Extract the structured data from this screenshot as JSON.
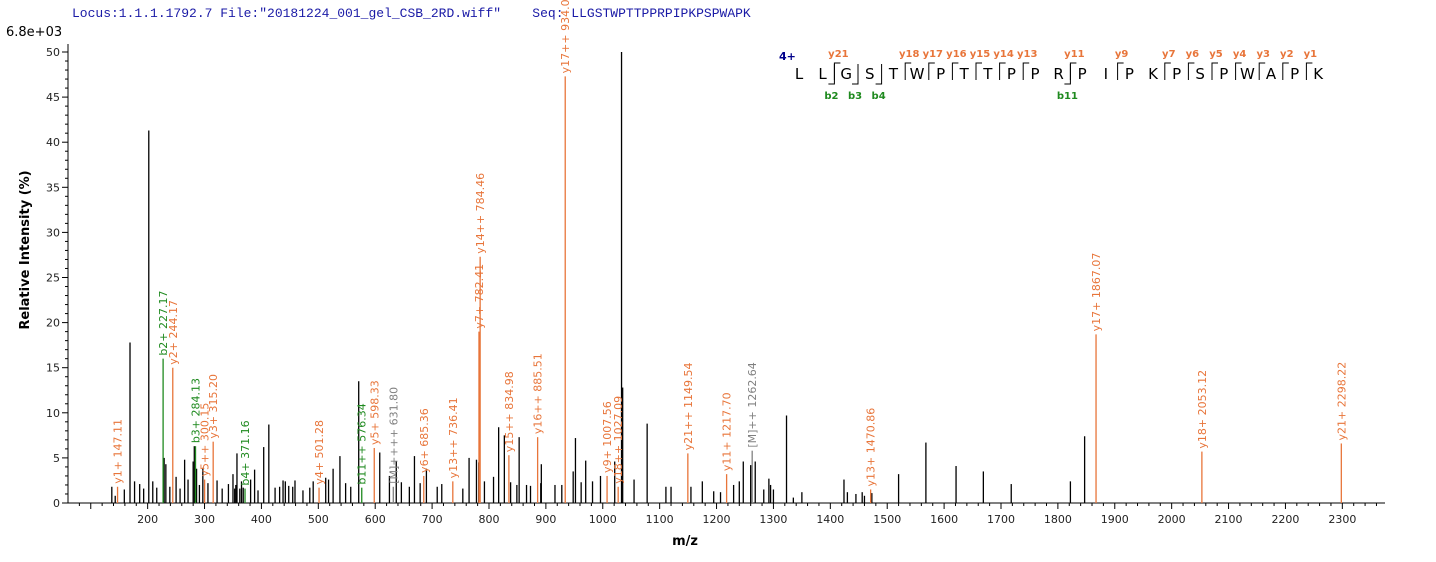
{
  "header": {
    "locus": "Locus:1.1.1.1792.7 File:\"20181224_001_gel_CSB_2RD.wiff\"",
    "seq": "Seq: LLGSTWPTTPPRPIPKPSPWAPK"
  },
  "scale_label": "6.8e+03",
  "colors": {
    "y_ion": "#e8753a",
    "b_ion": "#1f8a1f",
    "precursor": "#808080",
    "unassigned": "#000000",
    "header": "#1a1aa6",
    "charge": "#00008b"
  },
  "chart_data": {
    "type": "bar",
    "xlabel": "m/z",
    "ylabel": "Relative   Intensity (%)",
    "xlim": [
      60,
      2375
    ],
    "ylim": [
      0,
      50
    ],
    "x_ticks": [
      200,
      300,
      400,
      500,
      600,
      700,
      800,
      900,
      1000,
      1100,
      1200,
      1300,
      1400,
      1500,
      1600,
      1700,
      1800,
      1900,
      2000,
      2100,
      2200,
      2300
    ],
    "y_ticks": [
      0,
      5,
      10,
      15,
      20,
      25,
      30,
      35,
      40,
      45,
      50
    ],
    "unlabeled_peaks": [
      [
        137,
        1.8
      ],
      [
        143,
        0.8
      ],
      [
        159,
        1.5
      ],
      [
        169,
        17.8
      ],
      [
        177,
        2.4
      ],
      [
        186,
        2.1
      ],
      [
        193,
        1.6
      ],
      [
        202,
        41.3
      ],
      [
        209,
        2.4
      ],
      [
        216,
        1.7
      ],
      [
        229,
        5.0
      ],
      [
        232,
        4.3
      ],
      [
        239,
        1.8
      ],
      [
        250,
        2.9
      ],
      [
        257,
        1.6
      ],
      [
        265,
        4.8
      ],
      [
        271,
        2.6
      ],
      [
        280,
        4.6
      ],
      [
        282,
        6.3
      ],
      [
        286,
        3.8
      ],
      [
        291,
        2.0
      ],
      [
        297,
        3.9
      ],
      [
        306,
        2.2
      ],
      [
        322,
        2.5
      ],
      [
        331,
        1.6
      ],
      [
        342,
        2.1
      ],
      [
        350,
        3.2
      ],
      [
        353,
        1.6
      ],
      [
        355,
        2.0
      ],
      [
        357,
        5.5
      ],
      [
        362,
        1.6
      ],
      [
        365,
        2.4
      ],
      [
        368,
        1.7
      ],
      [
        381,
        2.6
      ],
      [
        388,
        3.7
      ],
      [
        394,
        1.4
      ],
      [
        404,
        6.2
      ],
      [
        413,
        8.7
      ],
      [
        424,
        1.7
      ],
      [
        432,
        1.8
      ],
      [
        438,
        2.5
      ],
      [
        442,
        2.4
      ],
      [
        448,
        1.9
      ],
      [
        455,
        1.8
      ],
      [
        459,
        2.5
      ],
      [
        473,
        1.4
      ],
      [
        485,
        1.7
      ],
      [
        491,
        2.4
      ],
      [
        513,
        2.8
      ],
      [
        518,
        2.6
      ],
      [
        526,
        3.8
      ],
      [
        538,
        5.2
      ],
      [
        548,
        2.2
      ],
      [
        557,
        1.8
      ],
      [
        571,
        13.5
      ],
      [
        608,
        5.6
      ],
      [
        625,
        3.0
      ],
      [
        637,
        4.6
      ],
      [
        646,
        2.3
      ],
      [
        660,
        1.8
      ],
      [
        669,
        5.2
      ],
      [
        679,
        2.2
      ],
      [
        690,
        3.8
      ],
      [
        709,
        1.8
      ],
      [
        717,
        2.1
      ],
      [
        754,
        1.6
      ],
      [
        765,
        5.0
      ],
      [
        778,
        4.8
      ],
      [
        782,
        4.5
      ],
      [
        792,
        2.4
      ],
      [
        808,
        2.9
      ],
      [
        817,
        8.4
      ],
      [
        827,
        7.5
      ],
      [
        838,
        2.3
      ],
      [
        849,
        2.0
      ],
      [
        853,
        7.3
      ],
      [
        866,
        2.0
      ],
      [
        873,
        1.9
      ],
      [
        891,
        2.2
      ],
      [
        892,
        4.3
      ],
      [
        916,
        2.0
      ],
      [
        928,
        2.0
      ],
      [
        948,
        3.5
      ],
      [
        952,
        7.2
      ],
      [
        962,
        2.3
      ],
      [
        970,
        4.7
      ],
      [
        982,
        2.4
      ],
      [
        996,
        3.0
      ],
      [
        1021,
        4.6
      ],
      [
        1033,
        50.0
      ],
      [
        1035,
        12.8
      ],
      [
        1055,
        2.6
      ],
      [
        1078,
        8.8
      ],
      [
        1111,
        1.8
      ],
      [
        1120,
        1.8
      ],
      [
        1155,
        1.8
      ],
      [
        1175,
        2.4
      ],
      [
        1195,
        1.3
      ],
      [
        1207,
        1.2
      ],
      [
        1230,
        2.0
      ],
      [
        1240,
        2.4
      ],
      [
        1247,
        4.6
      ],
      [
        1260,
        4.2
      ],
      [
        1268,
        4.6
      ],
      [
        1283,
        1.5
      ],
      [
        1292,
        2.7
      ],
      [
        1295,
        2.0
      ],
      [
        1300,
        1.5
      ],
      [
        1323,
        9.7
      ],
      [
        1335,
        0.6
      ],
      [
        1350,
        1.2
      ],
      [
        1424,
        2.6
      ],
      [
        1430,
        1.2
      ],
      [
        1445,
        1.0
      ],
      [
        1456,
        1.2
      ],
      [
        1460,
        0.8
      ],
      [
        1473,
        1.1
      ],
      [
        1520,
        3.2
      ],
      [
        1568,
        6.7
      ],
      [
        1621,
        4.1
      ],
      [
        1669,
        3.5
      ],
      [
        1718,
        2.1
      ],
      [
        1822,
        2.4
      ],
      [
        1847,
        7.4
      ]
    ],
    "annotated_peaks": [
      {
        "mz": 147.11,
        "intensity": 1.8,
        "label": "y1+ 147.11",
        "ion": "y"
      },
      {
        "mz": 227.17,
        "intensity": 16.0,
        "label": "b2+ 227.17",
        "ion": "b"
      },
      {
        "mz": 244.17,
        "intensity": 15.0,
        "label": "y2+ 244.17",
        "ion": "y"
      },
      {
        "mz": 284.13,
        "intensity": 6.3,
        "label": "b3+ 284.13",
        "ion": "b"
      },
      {
        "mz": 300.15,
        "intensity": 2.6,
        "label": "y5++ 300.15",
        "ion": "y"
      },
      {
        "mz": 315.2,
        "intensity": 6.8,
        "label": "y3+ 315.20",
        "ion": "y"
      },
      {
        "mz": 371.16,
        "intensity": 1.6,
        "label": "b4+ 371.16",
        "ion": "b"
      },
      {
        "mz": 501.28,
        "intensity": 1.7,
        "label": "y4+ 501.28",
        "ion": "y"
      },
      {
        "mz": 576.34,
        "intensity": 1.7,
        "label": "b11++ 576.34",
        "ion": "b"
      },
      {
        "mz": 598.33,
        "intensity": 6.1,
        "label": "y5+ 598.33",
        "ion": "y"
      },
      {
        "mz": 631.8,
        "intensity": 1.8,
        "label": "[M]++++ 631.80",
        "ion": "precursor"
      },
      {
        "mz": 685.36,
        "intensity": 3.0,
        "label": "y6+ 685.36",
        "ion": "y"
      },
      {
        "mz": 736.41,
        "intensity": 2.4,
        "label": "y13++ 736.41",
        "ion": "y"
      },
      {
        "mz": 782.41,
        "intensity": 19.0,
        "label": "y7+ 782.41",
        "ion": "y"
      },
      {
        "mz": 784.46,
        "intensity": 27.3,
        "label": "y14++ 784.46",
        "ion": "y"
      },
      {
        "mz": 834.98,
        "intensity": 5.3,
        "label": "y15++ 834.98",
        "ion": "y"
      },
      {
        "mz": 885.51,
        "intensity": 7.3,
        "label": "y16++ 885.51",
        "ion": "y"
      },
      {
        "mz": 934.0,
        "intensity": 47.3,
        "label": "y17++ 934.00",
        "ion": "y"
      },
      {
        "mz": 1007.56,
        "intensity": 3.0,
        "label": "y9+ 1007.56",
        "ion": "y"
      },
      {
        "mz": 1027.09,
        "intensity": 1.8,
        "label": "y18++ 1027.09",
        "ion": "y"
      },
      {
        "mz": 1149.54,
        "intensity": 5.5,
        "label": "y21++ 1149.54",
        "ion": "y"
      },
      {
        "mz": 1217.7,
        "intensity": 3.2,
        "label": "y11+ 1217.70",
        "ion": "y"
      },
      {
        "mz": 1262.64,
        "intensity": 5.8,
        "label": "[M]++ 1262.64",
        "ion": "precursor"
      },
      {
        "mz": 1470.86,
        "intensity": 1.5,
        "label": "y13+ 1470.86",
        "ion": "y"
      },
      {
        "mz": 1867.07,
        "intensity": 18.7,
        "label": "y17+ 1867.07",
        "ion": "y"
      },
      {
        "mz": 2053.12,
        "intensity": 5.7,
        "label": "y18+ 2053.12",
        "ion": "y"
      },
      {
        "mz": 2298.22,
        "intensity": 6.6,
        "label": "y21+ 2298.22",
        "ion": "y"
      }
    ],
    "sequence_map": {
      "charge": "4+",
      "letters": [
        "L",
        "L",
        "G",
        "S",
        "T",
        "W",
        "P",
        "T",
        "T",
        "P",
        "P",
        "R",
        "P",
        "I",
        "P",
        "K",
        "P",
        "S",
        "P",
        "W",
        "A",
        "P",
        "K"
      ],
      "y_ions": [
        "",
        "",
        "y21",
        "",
        "",
        "y18",
        "y17",
        "y16",
        "y15",
        "y14",
        "y13",
        "",
        "y11",
        "",
        "y9",
        "",
        "y7",
        "y6",
        "y5",
        "y4",
        "y3",
        "y2",
        "y1"
      ],
      "b_ions": [
        "",
        "b2",
        "b3",
        "b4",
        "",
        "",
        "",
        "",
        "",
        "",
        "",
        "b11",
        "",
        "",
        "",
        "",
        "",
        "",
        "",
        "",
        "",
        "",
        ""
      ]
    }
  }
}
